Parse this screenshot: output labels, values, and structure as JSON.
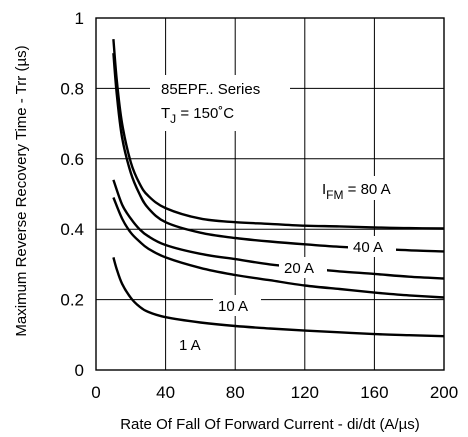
{
  "chart_data": {
    "type": "line",
    "xlabel": "Rate Of Fall Of Forward Current - di/dt (A/µs)",
    "ylabel": "Maximum Reverse Recovery Time - Trr (µs)",
    "xlim": [
      0,
      200
    ],
    "ylim": [
      0,
      1
    ],
    "xticks": [
      "0",
      "40",
      "80",
      "120",
      "160",
      "200"
    ],
    "yticks": [
      "0",
      "0.2",
      "0.4",
      "0.6",
      "0.8",
      "1"
    ],
    "grid": true,
    "annotation": {
      "series_title": "85EPF.. Series",
      "tj_prefix": "T",
      "tj_sub": "J",
      "tj_value": " = 150˚C"
    },
    "series": [
      {
        "name_prefix": "I",
        "name_sub": "FM",
        "name": " = 80 A",
        "x": [
          10,
          12,
          15,
          20,
          25,
          30,
          40,
          60,
          80,
          100,
          120,
          140,
          160,
          180,
          200
        ],
        "values": [
          0.94,
          0.82,
          0.7,
          0.59,
          0.53,
          0.495,
          0.46,
          0.43,
          0.42,
          0.415,
          0.41,
          0.408,
          0.405,
          0.403,
          0.402
        ]
      },
      {
        "name": "40 A",
        "x": [
          10,
          12,
          15,
          20,
          25,
          30,
          40,
          60,
          80,
          100,
          120,
          140,
          160,
          180,
          200
        ],
        "values": [
          0.9,
          0.78,
          0.66,
          0.56,
          0.5,
          0.46,
          0.42,
          0.39,
          0.375,
          0.365,
          0.357,
          0.35,
          0.345,
          0.34,
          0.337
        ]
      },
      {
        "name": "20 A",
        "x": [
          10,
          15,
          20,
          25,
          30,
          40,
          60,
          80,
          100,
          120,
          140,
          160,
          180,
          200
        ],
        "values": [
          0.54,
          0.47,
          0.43,
          0.4,
          0.38,
          0.355,
          0.33,
          0.315,
          0.3,
          0.29,
          0.28,
          0.273,
          0.265,
          0.26
        ]
      },
      {
        "name": "10 A",
        "x": [
          10,
          15,
          20,
          25,
          30,
          40,
          60,
          80,
          100,
          120,
          140,
          160,
          180,
          200
        ],
        "values": [
          0.49,
          0.43,
          0.39,
          0.365,
          0.345,
          0.32,
          0.29,
          0.27,
          0.255,
          0.24,
          0.23,
          0.22,
          0.212,
          0.206
        ]
      },
      {
        "name": "1 A",
        "x": [
          10,
          12,
          15,
          20,
          25,
          30,
          40,
          60,
          80,
          100,
          120,
          140,
          160,
          180,
          200
        ],
        "values": [
          0.32,
          0.285,
          0.245,
          0.205,
          0.18,
          0.165,
          0.15,
          0.135,
          0.125,
          0.118,
          0.112,
          0.107,
          0.102,
          0.099,
          0.096
        ]
      }
    ]
  }
}
